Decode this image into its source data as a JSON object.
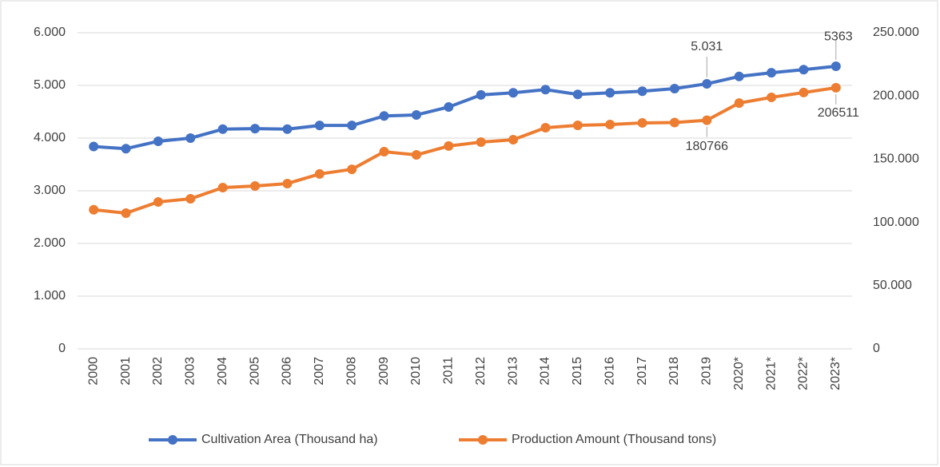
{
  "chart_data": {
    "type": "line",
    "categories": [
      "2000",
      "2001",
      "2002",
      "2003",
      "2004",
      "2005",
      "2006",
      "2007",
      "2008",
      "2009",
      "2010",
      "2011",
      "2012",
      "2013",
      "2014",
      "2015",
      "2016",
      "2017",
      "2018",
      "2019",
      "2020*",
      "2021*",
      "2022*",
      "2023*"
    ],
    "series": [
      {
        "name": "Cultivation Area (Thousand ha)",
        "color": "#4472c4",
        "values": [
          3840,
          3800,
          3940,
          4000,
          4170,
          4180,
          4170,
          4240,
          4240,
          4420,
          4440,
          4590,
          4820,
          4860,
          4920,
          4830,
          4860,
          4890,
          4940,
          5031,
          5170,
          5240,
          5300,
          5363
        ],
        "value_labels": [
          null,
          null,
          null,
          null,
          null,
          null,
          null,
          null,
          null,
          null,
          null,
          null,
          null,
          null,
          null,
          null,
          null,
          null,
          null,
          "5.031",
          null,
          null,
          null,
          "5363"
        ]
      },
      {
        "name": "Production Amount (Thousand tons)",
        "color": "#ed7d31",
        "axis": "y2",
        "values": [
          110000,
          107300,
          116200,
          118700,
          127500,
          128800,
          130700,
          138300,
          142000,
          155900,
          153400,
          160400,
          163500,
          165400,
          174900,
          176800,
          177400,
          178700,
          179000,
          180766,
          194400,
          198900,
          202700,
          206511
        ],
        "value_labels": [
          null,
          null,
          null,
          null,
          null,
          null,
          null,
          null,
          null,
          null,
          null,
          null,
          null,
          null,
          null,
          null,
          null,
          null,
          null,
          "180766",
          null,
          null,
          null,
          "206511"
        ]
      }
    ],
    "ylim": [
      0,
      6000
    ],
    "yticks": [
      0,
      {
        "value": 1000,
        "label": "1.000"
      },
      {
        "value": 2000,
        "label": "2.000"
      },
      {
        "value": 3000,
        "label": "3.000"
      },
      {
        "value": 4000,
        "label": "4.000"
      },
      {
        "value": 5000,
        "label": "5.000"
      },
      {
        "value": 6000,
        "label": "6.000"
      }
    ],
    "y2lim": [
      0,
      250000
    ],
    "y2ticks": [
      0,
      {
        "value": 50000,
        "label": "50.000"
      },
      {
        "value": 100000,
        "label": "100.000"
      },
      {
        "value": 150000,
        "label": "150.000"
      },
      {
        "value": 200000,
        "label": "200.000"
      },
      {
        "value": 250000,
        "label": "250.000"
      }
    ],
    "grid": true,
    "legend": "bottom"
  }
}
